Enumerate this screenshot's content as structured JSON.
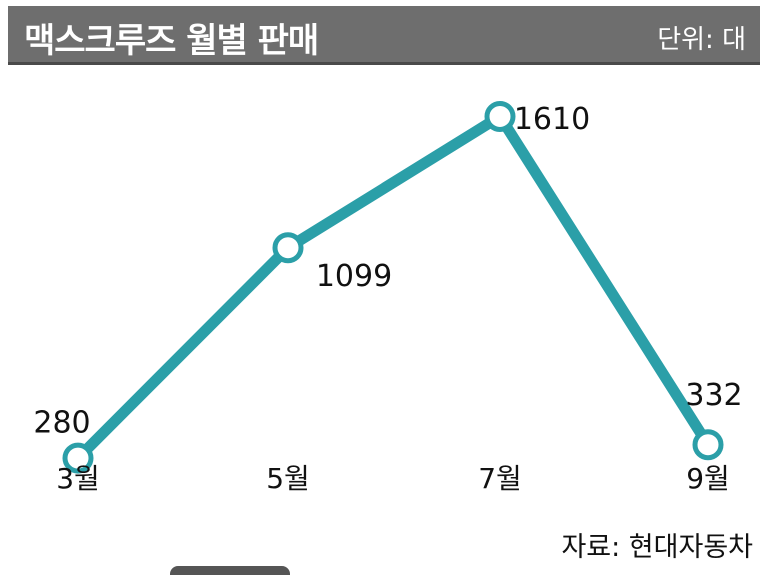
{
  "header": {
    "title": "맥스크루즈 월별 판매",
    "unit": "단위: 대"
  },
  "source": "자료: 현대자동차",
  "colors": {
    "line": "#2b9fa8",
    "header_bg": "#6e6e6e",
    "text": "#111111"
  },
  "chart_data": {
    "type": "line",
    "title": "맥스크루즈 월별 판매",
    "unit": "단위: 대",
    "categories": [
      "3월",
      "5월",
      "7월",
      "9월"
    ],
    "series": [
      {
        "values": [
          280,
          1099,
          1610,
          332
        ]
      }
    ],
    "data_labels": [
      "280",
      "1099",
      "1610",
      "332"
    ],
    "ylim": [
      0,
      1900
    ],
    "grid": false,
    "legend": "none"
  }
}
